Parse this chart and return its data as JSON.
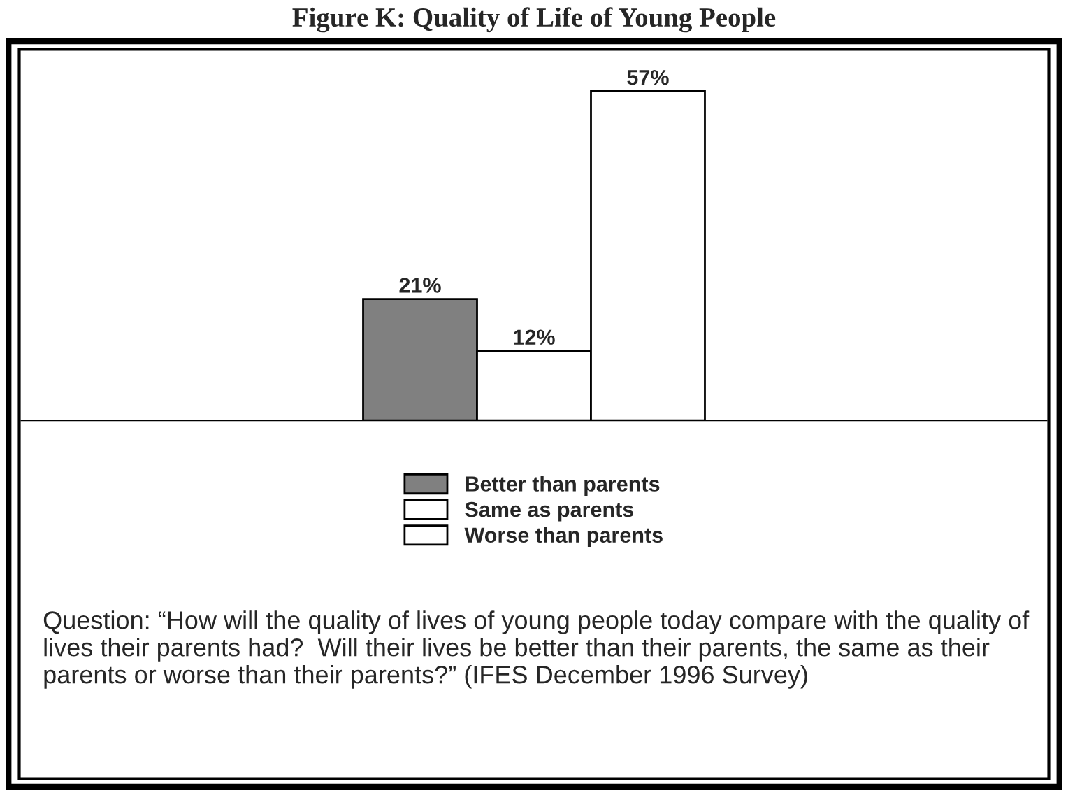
{
  "chart_data": {
    "type": "bar",
    "title": "Figure K: Quality of Life of Young People",
    "categories": [
      null
    ],
    "series": [
      {
        "name": "Better than parents",
        "color": "#808080",
        "values": [
          21
        ],
        "value_labels": [
          "21%"
        ]
      },
      {
        "name": "Same as parents",
        "color": "#ffffff",
        "values": [
          12
        ],
        "value_labels": [
          "12%"
        ]
      },
      {
        "name": "Worse than parents",
        "color": "#ffffff",
        "values": [
          57
        ],
        "value_labels": [
          "57%"
        ]
      }
    ],
    "legend": "bottom",
    "grid": false,
    "annotations": [
      "Question: “How will the quality of lives of young people today compare with the quality of lives their parents had?  Will their lives be better than their parents, the same as their parents or worse than their parents?” (IFES December 1996 Survey)"
    ]
  }
}
